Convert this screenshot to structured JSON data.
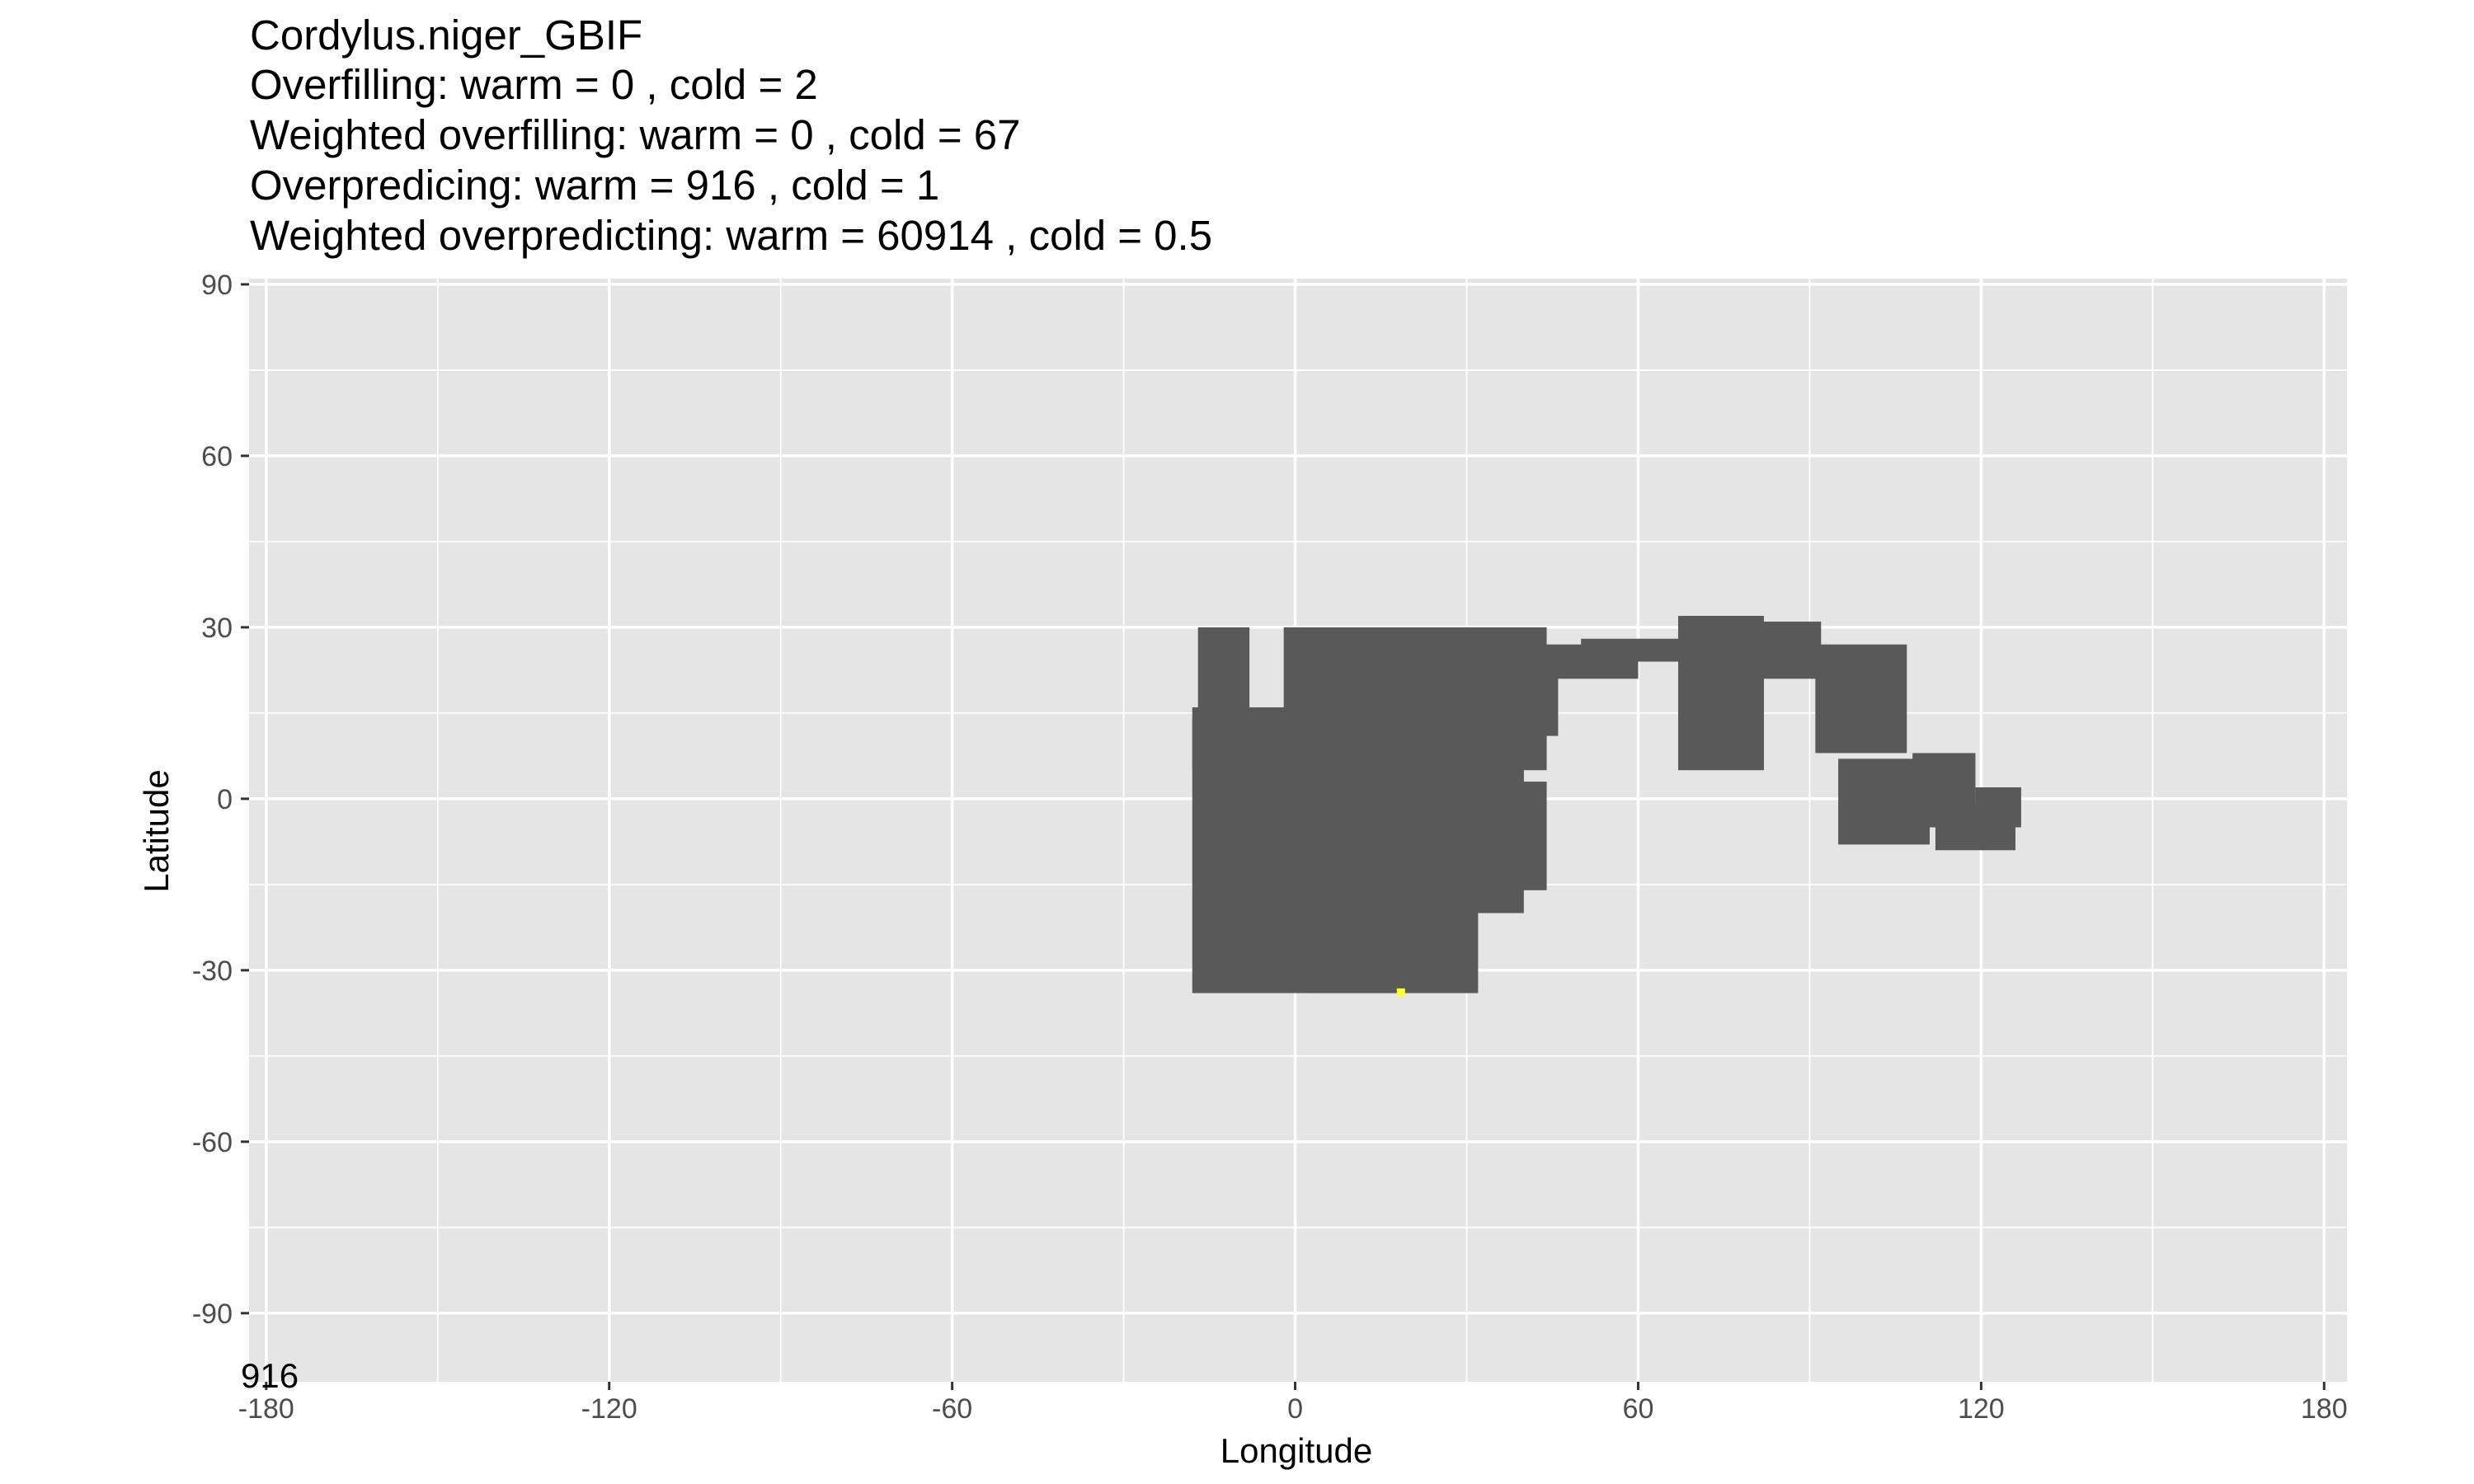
{
  "chart_data": {
    "type": "heatmap",
    "title_lines": [
      "Cordylus.niger_GBIF",
      "Overfilling: warm =  0  , cold =  2",
      "Weighted overfilling: warm =  0 , cold =  67",
      "Overpredicing: warm =  916  , cold =  1",
      "Weighted overpredicting: warm =  60914 , cold =  0.5"
    ],
    "xlabel": "Longitude",
    "ylabel": "Latitude",
    "xlim": [
      -183,
      184
    ],
    "ylim": [
      -102,
      91
    ],
    "x_ticks": [
      -180,
      -120,
      -60,
      0,
      60,
      120,
      180
    ],
    "y_ticks": [
      90,
      60,
      30,
      0,
      -30,
      -60,
      -90
    ],
    "x_tick_labels": [
      "-180",
      "-120",
      "-60",
      "0",
      "60",
      "120",
      "180"
    ],
    "y_tick_labels": [
      "90",
      "60",
      "30",
      "0",
      "-30",
      "-60",
      "-90"
    ],
    "annotation": "916",
    "grid": true,
    "colors": {
      "panel": "#e5e5e5",
      "grid": "#ffffff",
      "range_cells": "#595959",
      "occurrence": "#ffff33"
    },
    "range_patches": [
      {
        "lon": [
          -18,
          32
        ],
        "lat": [
          -34,
          14
        ]
      },
      {
        "lon": [
          2,
          18
        ],
        "lat": [
          -34,
          -5
        ]
      },
      {
        "lon": [
          -18,
          30
        ],
        "lat": [
          5,
          16
        ]
      },
      {
        "lon": [
          -17,
          -8
        ],
        "lat": [
          10,
          30
        ]
      },
      {
        "lon": [
          -2,
          44
        ],
        "lat": [
          5,
          30
        ]
      },
      {
        "lon": [
          13,
          40
        ],
        "lat": [
          -20,
          14
        ]
      },
      {
        "lon": [
          30,
          44
        ],
        "lat": [
          -16,
          3
        ]
      },
      {
        "lon": [
          24,
          40
        ],
        "lat": [
          0,
          12
        ]
      },
      {
        "lon": [
          33,
          46
        ],
        "lat": [
          11,
          26
        ]
      },
      {
        "lon": [
          42,
          60
        ],
        "lat": [
          21,
          27
        ]
      },
      {
        "lon": [
          50,
          70
        ],
        "lat": [
          24,
          28
        ]
      },
      {
        "lon": [
          67,
          82
        ],
        "lat": [
          5,
          32
        ]
      },
      {
        "lon": [
          74,
          92
        ],
        "lat": [
          21,
          31
        ]
      },
      {
        "lon": [
          91,
          107
        ],
        "lat": [
          8,
          27
        ]
      },
      {
        "lon": [
          95,
          111
        ],
        "lat": [
          -8,
          7
        ]
      },
      {
        "lon": [
          108,
          119
        ],
        "lat": [
          -5,
          8
        ]
      },
      {
        "lon": [
          112,
          126
        ],
        "lat": [
          -9,
          -1
        ]
      },
      {
        "lon": [
          119,
          127
        ],
        "lat": [
          -5,
          2
        ]
      }
    ],
    "occurrence_points": [
      {
        "lon": 18.5,
        "lat": -33.9
      }
    ]
  }
}
